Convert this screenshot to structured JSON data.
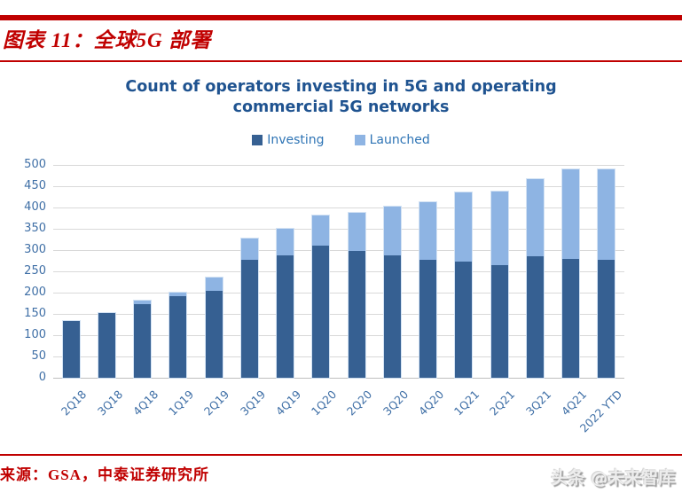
{
  "header": {
    "figure_title": "图表 11：全球5G 部署"
  },
  "footer": {
    "source": "来源：GSA，中泰证券研究所",
    "watermark": "头条 @未来智库"
  },
  "colors": {
    "accent_red": "#c00000",
    "title_blue": "#1f5390",
    "legend_blue": "#2e74b5",
    "axis_blue": "#3f6fa6",
    "investing": "#366092",
    "launched": "#8eb4e3",
    "gridline": "#d9d9d9"
  },
  "chart_data": {
    "type": "bar",
    "stacked": true,
    "title": "Count of operators investing in 5G and operating commercial 5G networks",
    "legend_position": "top",
    "grid": true,
    "ylim": [
      0,
      500
    ],
    "ytick_step": 50,
    "xlabel": "",
    "ylabel": "",
    "categories": [
      "2Q18",
      "3Q18",
      "4Q18",
      "1Q19",
      "2Q19",
      "3Q19",
      "4Q19",
      "1Q20",
      "2Q20",
      "3Q20",
      "4Q20",
      "1Q21",
      "2Q21",
      "3Q21",
      "4Q21",
      "2022 YTD"
    ],
    "series": [
      {
        "name": "Investing",
        "color_key": "investing",
        "values": [
          133,
          153,
          172,
          191,
          205,
          277,
          287,
          311,
          298,
          287,
          277,
          272,
          265,
          285,
          280,
          278
        ]
      },
      {
        "name": "Launched",
        "color_key": "launched",
        "values": [
          0,
          0,
          10,
          9,
          31,
          51,
          63,
          71,
          90,
          115,
          136,
          163,
          172,
          181,
          209,
          211
        ]
      }
    ],
    "totals": [
      133,
      153,
      182,
      200,
      236,
      328,
      350,
      382,
      388,
      402,
      413,
      435,
      437,
      466,
      489,
      489
    ]
  }
}
